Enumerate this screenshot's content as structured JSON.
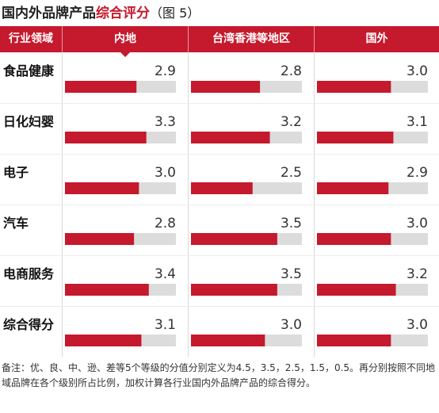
{
  "title": {
    "main": "国内外品牌产品",
    "highlight": "综合评分",
    "figure": "（图 5）"
  },
  "colors": {
    "accent": "#c5192d",
    "bar_fill": "#c5192d",
    "bar_track": "#dcdcdc",
    "grid": "#d9d9d9"
  },
  "chart_data": {
    "type": "bar",
    "orientation": "horizontal",
    "header_row_label": "行业领域",
    "panels": [
      "内地",
      "台湾香港等地区",
      "国外"
    ],
    "categories": [
      "食品健康",
      "日化妇婴",
      "电子",
      "汽车",
      "电商服务",
      "综合得分"
    ],
    "series": [
      {
        "name": "内地",
        "values": [
          2.9,
          3.3,
          3.0,
          2.8,
          3.4,
          3.1
        ]
      },
      {
        "name": "台湾香港等地区",
        "values": [
          2.8,
          3.2,
          2.5,
          3.5,
          3.5,
          3.0
        ]
      },
      {
        "name": "国外",
        "values": [
          3.0,
          3.1,
          2.9,
          3.0,
          3.2,
          3.0
        ]
      }
    ],
    "xlim": [
      0,
      4.5
    ],
    "grid": false,
    "value_format": "0.0"
  },
  "note": "备注：优、良、中、逊、差等5个等级的分值分别定义为4.5，3.5，2.5，1.5，0.5。再分别按照不同地域品牌在各个级别所占比例，加权计算各行业国内外品牌产品的综合得分。"
}
